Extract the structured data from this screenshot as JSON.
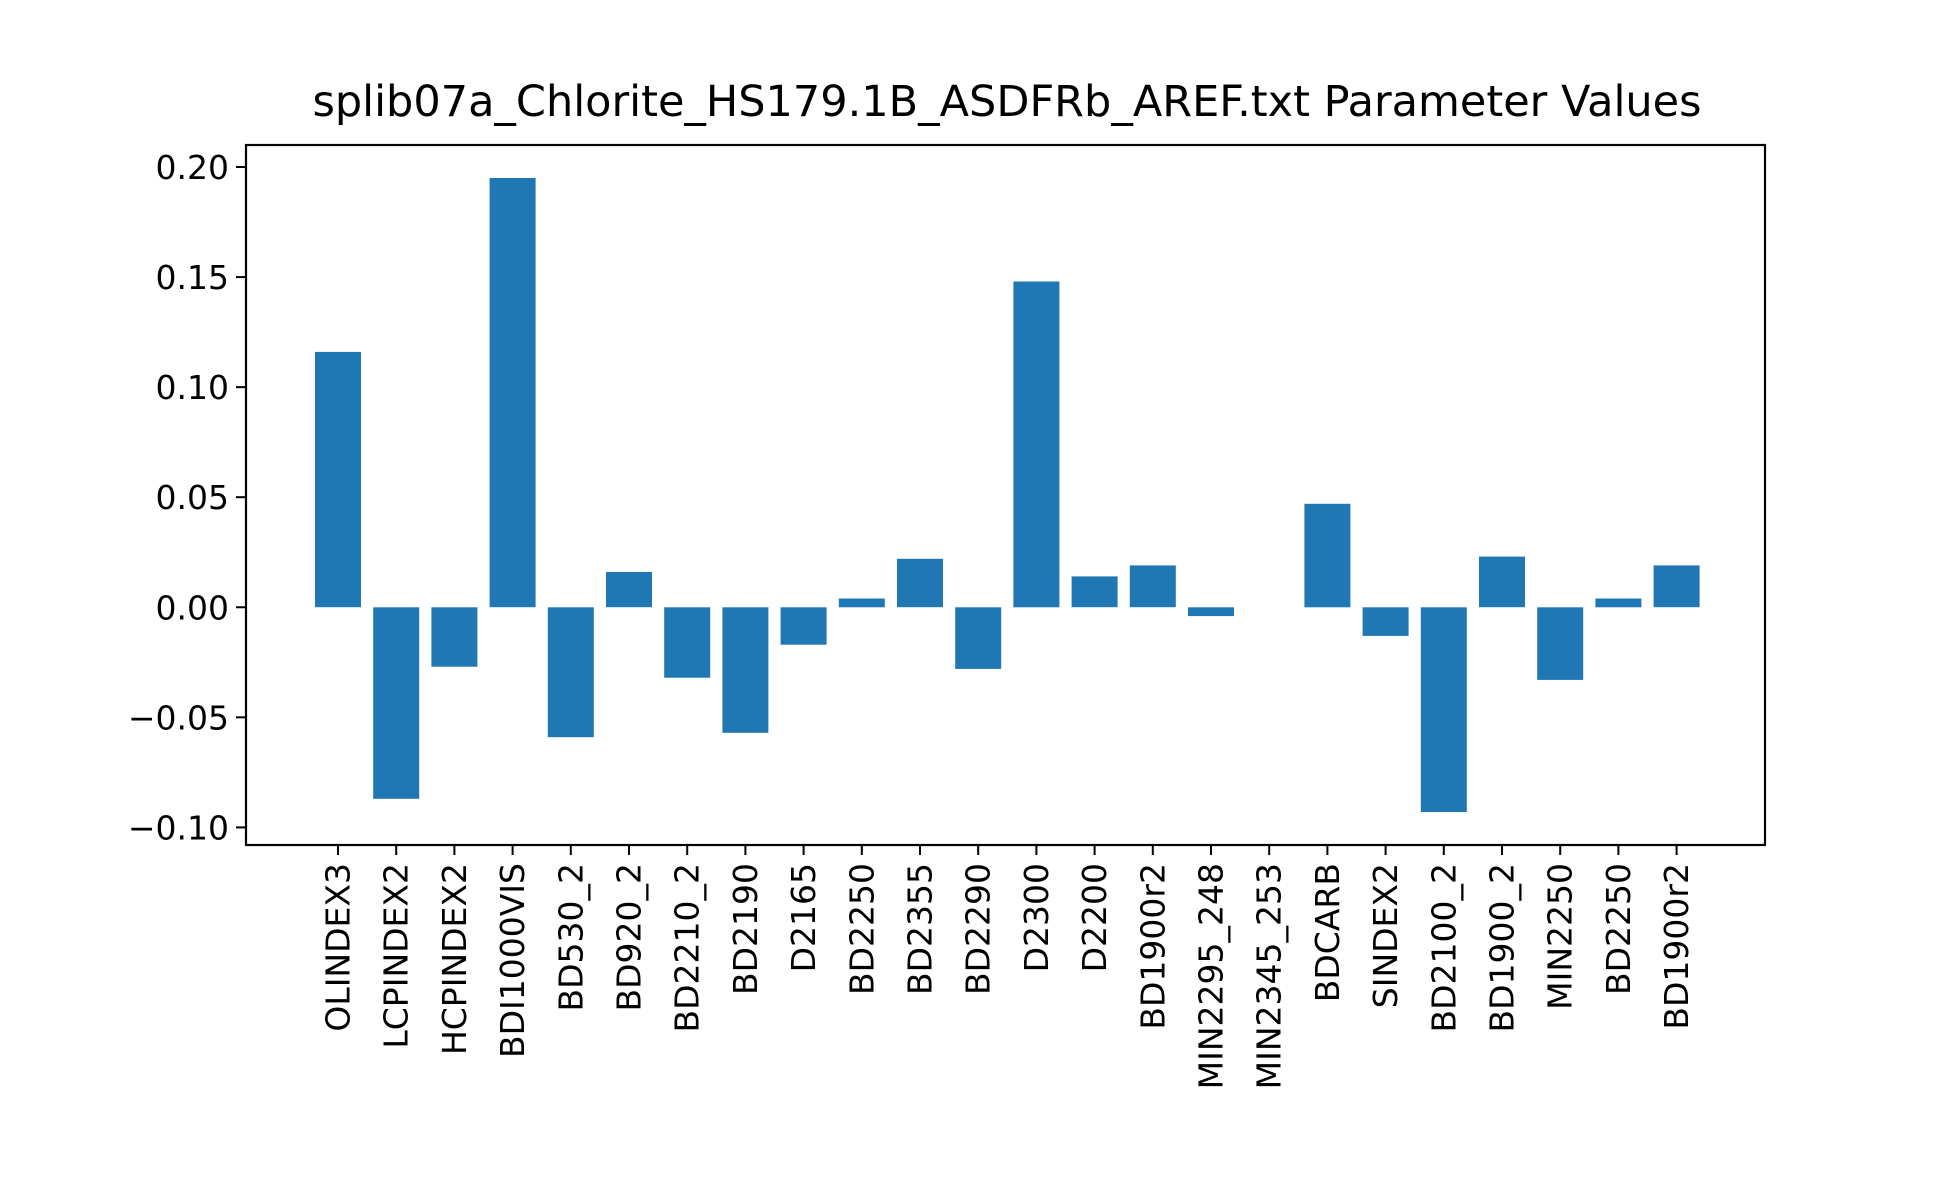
{
  "chart_data": {
    "type": "bar",
    "title": "splib07a_Chlorite_HS179.1B_ASDFRb_AREF.txt Parameter Values",
    "xlabel": "",
    "ylabel": "",
    "ylim": [
      -0.108,
      0.21
    ],
    "yticks": [
      0.2,
      0.15,
      0.1,
      0.05,
      0.0,
      -0.05,
      -0.1
    ],
    "ytick_labels": [
      "0.20",
      "0.15",
      "0.10",
      "0.05",
      "0.00",
      "−0.05",
      "−0.10"
    ],
    "grid": false,
    "bar_color": "#1f77b4",
    "categories": [
      "OLINDEX3",
      "LCPINDEX2",
      "HCPINDEX2",
      "BDI1000VIS",
      "BD530_2",
      "BD920_2",
      "BD2210_2",
      "BD2190",
      "D2165",
      "BD2250",
      "BD2355",
      "BD2290",
      "D2300",
      "D2200",
      "BD1900r2",
      "MIN2295_248",
      "MIN2345_253",
      "BDCARB",
      "SINDEX2",
      "BD2100_2",
      "BD1900_2",
      "MIN2250",
      "BD2250",
      "BD1900r2"
    ],
    "values": [
      0.116,
      -0.087,
      -0.027,
      0.195,
      -0.059,
      0.016,
      -0.032,
      -0.057,
      -0.017,
      0.004,
      0.022,
      -0.028,
      0.148,
      0.014,
      0.019,
      -0.004,
      0.0,
      0.047,
      -0.013,
      -0.093,
      0.023,
      -0.033,
      0.004,
      0.019
    ]
  }
}
